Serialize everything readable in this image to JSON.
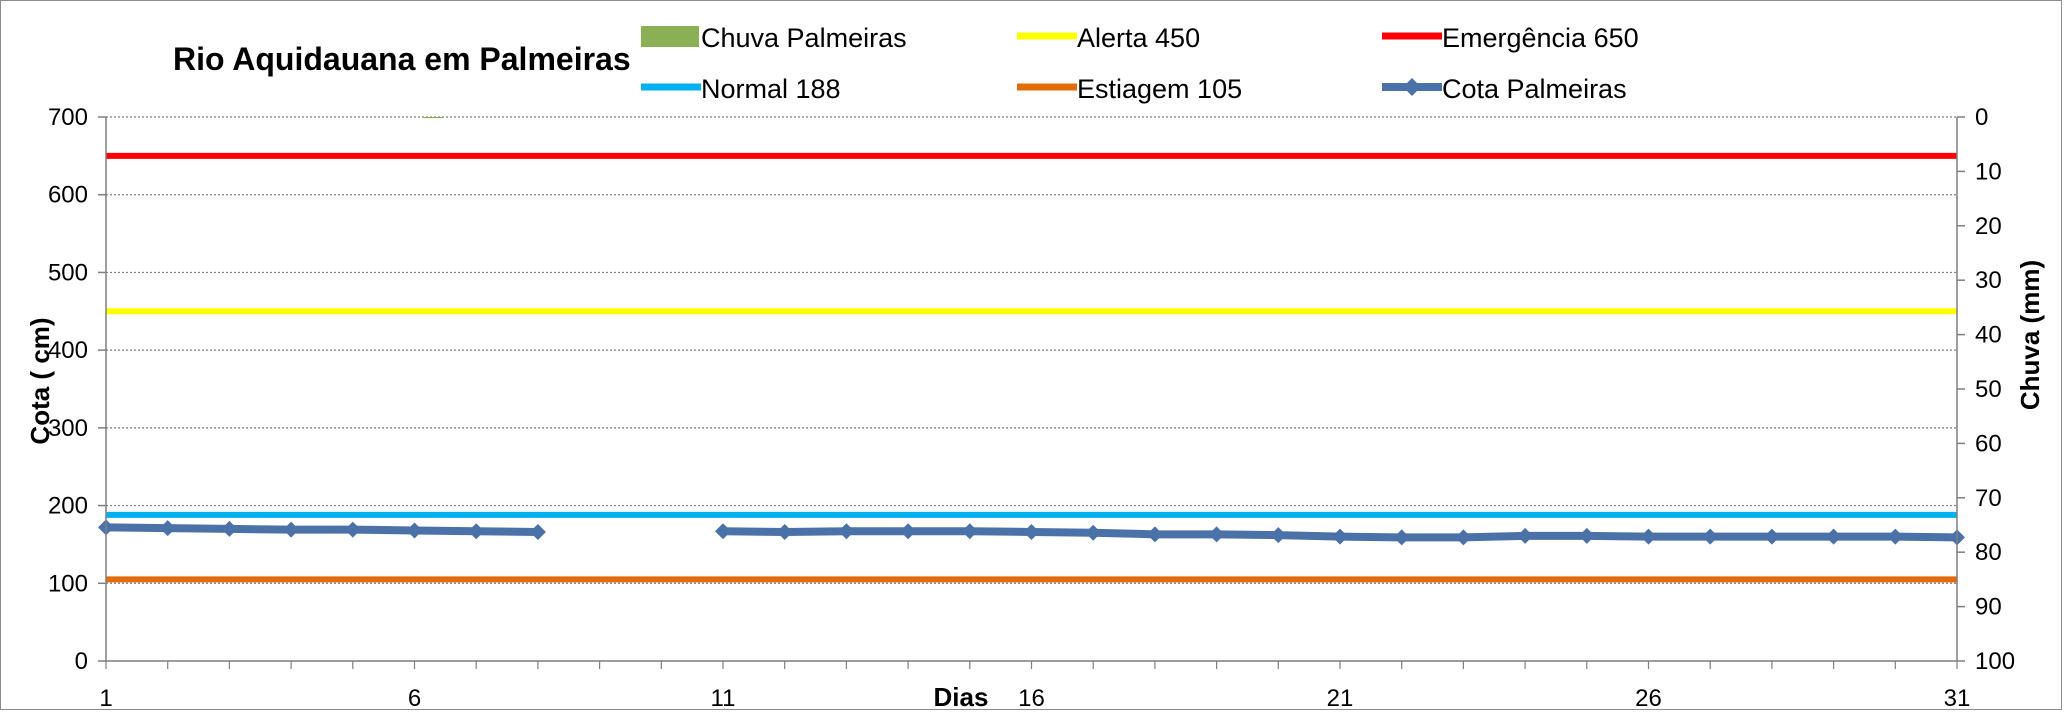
{
  "chart_data": {
    "type": "line",
    "title": "Rio Aquidauana em Palmeiras",
    "xlabel": "Dias",
    "ylabel": "Cota   ( cm)",
    "y2label": "Chuva (mm)",
    "x_ticks": [
      1,
      6,
      11,
      16,
      21,
      26,
      31
    ],
    "xlim": [
      1,
      31
    ],
    "ylim": [
      0,
      700
    ],
    "y_ticks": [
      0,
      100,
      200,
      300,
      400,
      500,
      600,
      700
    ],
    "y2lim": [
      0,
      100
    ],
    "y2_ticks": [
      0,
      10,
      20,
      30,
      40,
      50,
      60,
      70,
      80,
      90,
      100
    ],
    "y2_inverted": true,
    "gridlines": "horizontal dotted",
    "series": [
      {
        "name": "Chuva  Palmeiras",
        "kind": "bar",
        "axis": "y2",
        "color": "#8BAF55",
        "x": [
          6.3
        ],
        "values": [
          0.2
        ]
      },
      {
        "name": "Alerta 450",
        "kind": "hline",
        "value": 450,
        "color": "#FFFF00"
      },
      {
        "name": "Emergência 650",
        "kind": "hline",
        "value": 650,
        "color": "#FF0000"
      },
      {
        "name": "Normal  188",
        "kind": "hline",
        "value": 188,
        "color": "#00B0F0"
      },
      {
        "name": "Estiagem 105",
        "kind": "hline",
        "value": 105,
        "color": "#E36C0A"
      },
      {
        "name": "Cota Palmeiras",
        "kind": "line-marker",
        "color": "#4A72A8",
        "x": [
          1,
          2,
          3,
          4,
          5,
          6,
          7,
          8,
          11,
          12,
          13,
          14,
          15,
          16,
          17,
          18,
          19,
          20,
          21,
          22,
          23,
          24,
          25,
          26,
          27,
          28,
          29,
          30,
          31
        ],
        "values": [
          172,
          171,
          170,
          169,
          169,
          168,
          167,
          166,
          167,
          166,
          167,
          167,
          167,
          166,
          165,
          163,
          163,
          162,
          160,
          159,
          159,
          161,
          161,
          160,
          160,
          160,
          160,
          160,
          159
        ]
      }
    ],
    "legend": {
      "placement": "top",
      "rows": [
        [
          "Chuva  Palmeiras",
          "Alerta 450",
          "Emergência 650"
        ],
        [
          "Normal  188",
          "Estiagem 105",
          "Cota Palmeiras"
        ]
      ]
    }
  }
}
